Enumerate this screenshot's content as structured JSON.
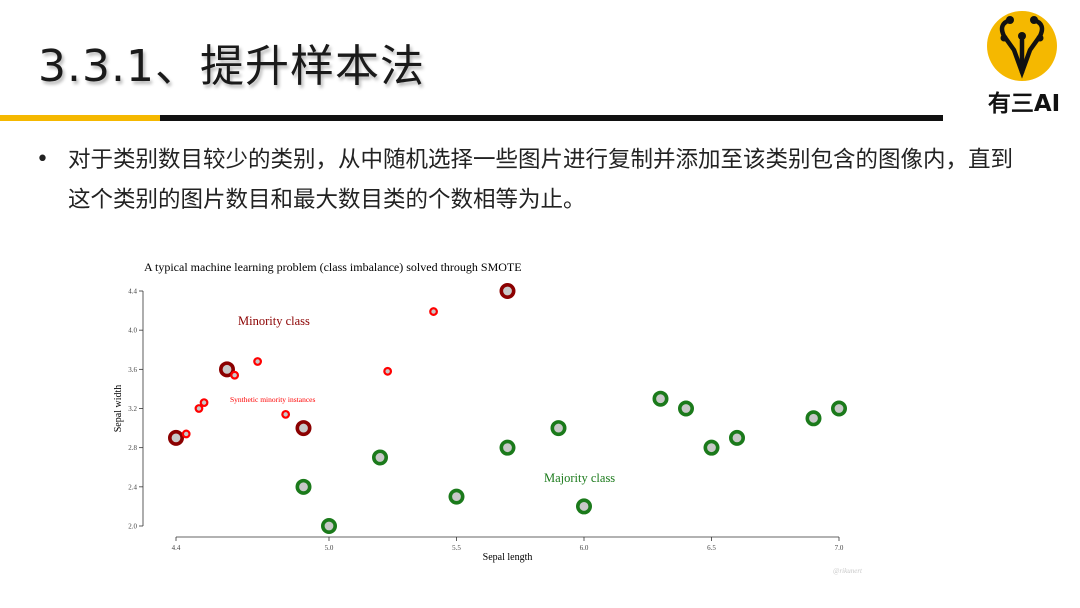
{
  "slide": {
    "title": "3.3.1、提升样本法",
    "bullet": "对于类别数目较少的类别，从中随机选择一些图片进行复制并添加至该类别包含的图像内，直到这个类别的图片数目和最大数目类的个数相等为止。",
    "logo_text": "有三AI"
  },
  "colors": {
    "accent_yellow": "#f5b800",
    "rule_black": "#111111",
    "minority_dark": "#8b0000",
    "synthetic_red": "#ff0000",
    "majority_green": "#1b7a1b",
    "marker_fill": "#c8c8c8"
  },
  "chart_data": {
    "type": "scatter",
    "title": "A typical machine learning problem (class imbalance) solved through SMOTE",
    "xlabel": "Sepal length",
    "ylabel": "Sepal width",
    "xlim": [
      4.4,
      7.0
    ],
    "ylim": [
      2.0,
      4.4
    ],
    "xticks": [
      "4.4",
      "5.0",
      "5.5",
      "6.0",
      "6.5",
      "7.0"
    ],
    "yticks": [
      "2.0",
      "2.4",
      "2.8",
      "3.2",
      "3.6",
      "4.0",
      "4.4"
    ],
    "grid": false,
    "annotations": [
      "Minority class",
      "Synthetic minority instances",
      "Majority class"
    ],
    "watermark": "@rikunert",
    "series": [
      {
        "class": "minority",
        "points": [
          [
            4.4,
            2.9
          ],
          [
            4.6,
            3.6
          ],
          [
            4.9,
            3.0
          ],
          [
            5.7,
            4.4
          ]
        ]
      },
      {
        "class": "synthetic",
        "points": [
          [
            4.44,
            2.94
          ],
          [
            4.49,
            3.2
          ],
          [
            4.51,
            3.26
          ],
          [
            4.63,
            3.54
          ],
          [
            4.72,
            3.68
          ],
          [
            4.83,
            3.14
          ],
          [
            5.23,
            3.58
          ],
          [
            5.41,
            4.19
          ]
        ]
      },
      {
        "class": "majority",
        "points": [
          [
            4.9,
            2.4
          ],
          [
            5.0,
            2.0
          ],
          [
            5.2,
            2.7
          ],
          [
            5.5,
            2.3
          ],
          [
            5.7,
            2.8
          ],
          [
            5.9,
            3.0
          ],
          [
            6.0,
            2.2
          ],
          [
            6.3,
            3.3
          ],
          [
            6.4,
            3.2
          ],
          [
            6.5,
            2.8
          ],
          [
            6.6,
            2.9
          ],
          [
            6.9,
            3.1
          ],
          [
            7.0,
            3.2
          ]
        ]
      }
    ]
  }
}
